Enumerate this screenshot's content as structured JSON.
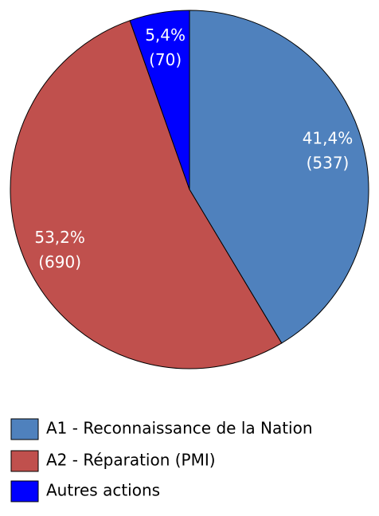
{
  "chart_data": {
    "type": "pie",
    "categories": [
      "A1 - Reconnaissance de la Nation",
      "A2 - Réparation (PMI)",
      "Autres actions"
    ],
    "values": [
      41.4,
      53.2,
      5.4
    ],
    "value_labels": [
      "41,4%",
      "53,2%",
      "5,4%"
    ],
    "counts": [
      537,
      690,
      70
    ],
    "count_labels": [
      "(537)",
      "(690)",
      "(70)"
    ],
    "colors": [
      "#4f81bd",
      "#c0504d",
      "#0000ff"
    ],
    "start": "top",
    "direction": "clockwise",
    "legend": "bottom"
  }
}
